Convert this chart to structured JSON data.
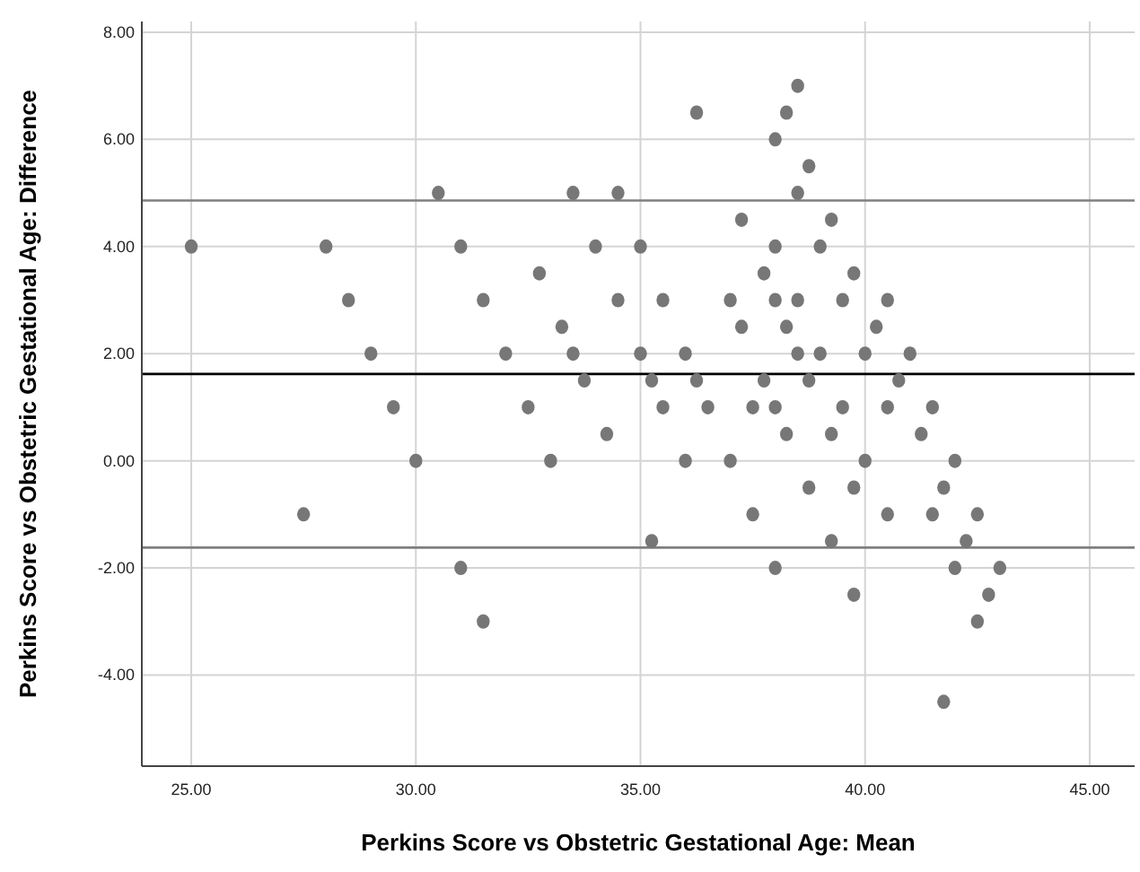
{
  "chart_data": {
    "type": "scatter",
    "xlabel": "Perkins Score vs Obstetric Gestational Age: Mean",
    "ylabel": "Perkins Score vs Obstetric Gestational Age: Difference",
    "xlim": [
      23.9,
      46
    ],
    "ylim": [
      -5.7,
      8.2
    ],
    "xticks": [
      {
        "value": 25,
        "label": "25.00"
      },
      {
        "value": 30,
        "label": "30.00"
      },
      {
        "value": 35,
        "label": "35.00"
      },
      {
        "value": 40,
        "label": "40.00"
      },
      {
        "value": 45,
        "label": "45.00"
      }
    ],
    "yticks": [
      {
        "value": -4,
        "label": "-4.00"
      },
      {
        "value": -2,
        "label": "-2.00"
      },
      {
        "value": 0,
        "label": "0.00"
      },
      {
        "value": 2,
        "label": "2.00"
      },
      {
        "value": 4,
        "label": "4.00"
      },
      {
        "value": 6,
        "label": "6.00"
      },
      {
        "value": 8,
        "label": "8.00"
      }
    ],
    "grid": true,
    "marker": "circle",
    "series": [
      {
        "color": "#777777",
        "x": [
          25,
          27.5,
          28,
          28.5,
          29,
          29.5,
          30,
          30.5,
          31,
          31,
          31.5,
          31.5,
          32,
          32.5,
          32.75,
          33,
          33.25,
          33.5,
          33.5,
          33.75,
          34,
          34.25,
          34.5,
          34.5,
          35,
          35,
          35.25,
          35.25,
          35.5,
          35.5,
          36,
          36,
          36.25,
          36.25,
          36.5,
          37,
          37,
          37.25,
          37.25,
          37.5,
          37.5,
          37.75,
          37.75,
          38,
          38,
          38,
          38,
          38,
          38.25,
          38.25,
          38.25,
          38.5,
          38.5,
          38.5,
          38.5,
          38.75,
          38.75,
          38.75,
          39,
          39,
          39.25,
          39.25,
          39.25,
          39.5,
          39.5,
          39.75,
          39.75,
          39.75,
          40,
          40,
          40.25,
          40.5,
          40.5,
          40.5,
          40.75,
          41,
          41.25,
          41.5,
          41.5,
          41.75,
          41.75,
          42,
          42,
          42.25,
          42.5,
          42.5,
          42.75,
          43
        ],
        "values": [
          4,
          -1,
          4,
          3,
          2,
          1,
          0,
          5,
          4,
          -2,
          3,
          -3,
          2,
          1,
          3.5,
          0,
          2.5,
          5,
          2,
          1.5,
          4,
          0.5,
          5,
          3,
          4,
          2,
          1.5,
          -1.5,
          3,
          1,
          2,
          0,
          6.5,
          1.5,
          1,
          3,
          0,
          4.5,
          2.5,
          1,
          -1,
          3.5,
          1.5,
          6,
          4,
          3,
          1,
          -2,
          6.5,
          2.5,
          0.5,
          7,
          5,
          3,
          2,
          5.5,
          1.5,
          -0.5,
          4,
          2,
          4.5,
          0.5,
          -1.5,
          3,
          1,
          3.5,
          -0.5,
          -2.5,
          2,
          0,
          2.5,
          3,
          1,
          -1,
          1.5,
          2,
          0.5,
          1,
          -1,
          -0.5,
          -4.5,
          0,
          -2,
          -1.5,
          -1,
          -3,
          -2.5,
          -2
        ]
      }
    ],
    "ref_lines": [
      {
        "axis": "y",
        "value": 4.86,
        "color": "#7f7f7f"
      },
      {
        "axis": "y",
        "value": 1.62,
        "color": "#000000"
      },
      {
        "axis": "y",
        "value": -1.62,
        "color": "#7f7f7f"
      }
    ]
  }
}
